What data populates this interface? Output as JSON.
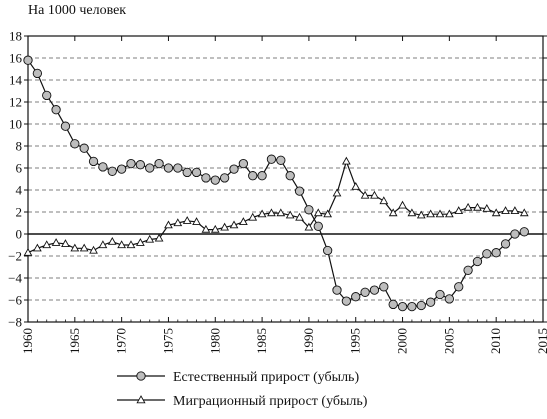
{
  "chart_data": {
    "type": "line",
    "ylabel": "На 1000 человек",
    "xlabel": "",
    "title": "",
    "xlim": [
      1960,
      2015
    ],
    "ylim": [
      -8,
      18
    ],
    "xticks": [
      "1960",
      "1965",
      "1970",
      "1975",
      "1980",
      "1985",
      "1990",
      "1995",
      "2000",
      "2005",
      "2010",
      "2015"
    ],
    "yticks": [
      "18",
      "16",
      "14",
      "12",
      "10",
      "8",
      "6",
      "4",
      "2",
      "0",
      "−2",
      "−4",
      "−6",
      "−8"
    ],
    "grid": "horizontal dashed",
    "legend_position": "bottom",
    "colors": {
      "line": "#111111",
      "marker_fill": "#bdbdbd",
      "grid": "#555555"
    },
    "series": [
      {
        "name": "Естественный прирост (убыль)",
        "marker": "circle",
        "x": [
          1960,
          1961,
          1962,
          1963,
          1964,
          1965,
          1966,
          1967,
          1968,
          1969,
          1970,
          1971,
          1972,
          1973,
          1974,
          1975,
          1976,
          1977,
          1978,
          1979,
          1980,
          1981,
          1982,
          1983,
          1984,
          1985,
          1986,
          1987,
          1988,
          1989,
          1990,
          1991,
          1992,
          1993,
          1994,
          1995,
          1996,
          1997,
          1998,
          1999,
          2000,
          2001,
          2002,
          2003,
          2004,
          2005,
          2006,
          2007,
          2008,
          2009,
          2010,
          2011,
          2012,
          2013
        ],
        "values": [
          15.8,
          14.6,
          12.6,
          11.3,
          9.8,
          8.2,
          7.8,
          6.6,
          6.1,
          5.7,
          5.9,
          6.4,
          6.3,
          6.0,
          6.4,
          6.0,
          6.0,
          5.6,
          5.6,
          5.1,
          4.9,
          5.1,
          5.9,
          6.4,
          5.3,
          5.3,
          6.8,
          6.7,
          5.3,
          3.9,
          2.2,
          0.7,
          -1.5,
          -5.1,
          -6.1,
          -5.7,
          -5.3,
          -5.1,
          -4.8,
          -6.4,
          -6.6,
          -6.6,
          -6.5,
          -6.2,
          -5.5,
          -5.9,
          -4.8,
          -3.3,
          -2.5,
          -1.8,
          -1.7,
          -0.9,
          0.0,
          0.2
        ]
      },
      {
        "name": "Миграционный прирост (убыль)",
        "marker": "triangle",
        "x": [
          1960,
          1961,
          1962,
          1963,
          1964,
          1965,
          1966,
          1967,
          1968,
          1969,
          1970,
          1971,
          1972,
          1973,
          1974,
          1975,
          1976,
          1977,
          1978,
          1979,
          1980,
          1981,
          1982,
          1983,
          1984,
          1985,
          1986,
          1987,
          1988,
          1989,
          1990,
          1991,
          1992,
          1993,
          1994,
          1995,
          1996,
          1997,
          1998,
          1999,
          2000,
          2001,
          2002,
          2003,
          2004,
          2005,
          2006,
          2007,
          2008,
          2009,
          2010,
          2011,
          2012,
          2013
        ],
        "values": [
          -1.7,
          -1.3,
          -1.0,
          -0.8,
          -0.9,
          -1.3,
          -1.3,
          -1.5,
          -1.0,
          -0.7,
          -1.0,
          -1.0,
          -0.8,
          -0.5,
          -0.4,
          0.8,
          1.0,
          1.2,
          1.1,
          0.4,
          0.4,
          0.6,
          0.8,
          1.1,
          1.5,
          1.8,
          1.9,
          1.9,
          1.7,
          1.5,
          0.6,
          1.9,
          1.8,
          3.7,
          6.6,
          4.3,
          3.5,
          3.5,
          3.0,
          1.9,
          2.6,
          1.9,
          1.7,
          1.8,
          1.8,
          1.8,
          2.1,
          2.4,
          2.4,
          2.3,
          1.9,
          2.1,
          2.1,
          1.9
        ]
      }
    ]
  }
}
